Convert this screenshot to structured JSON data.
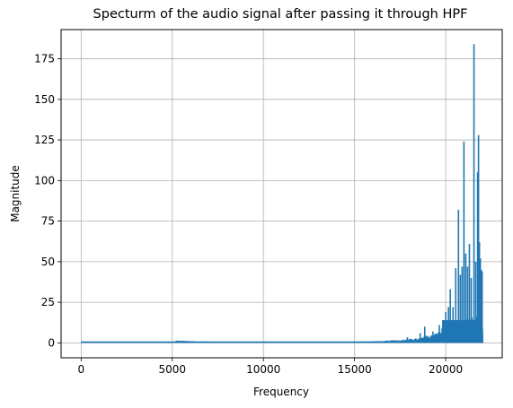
{
  "chart_data": {
    "type": "line",
    "title": "Specturm of the audio signal after passing it through HPF",
    "xlabel": "Frequency",
    "ylabel": "Magnitude",
    "xlim": [
      -1100,
      23100
    ],
    "ylim": [
      -9.2,
      193
    ],
    "grid": true,
    "xticks": [
      0,
      5000,
      10000,
      15000,
      20000
    ],
    "xtick_labels": [
      "0",
      "5000",
      "10000",
      "15000",
      "20000"
    ],
    "yticks": [
      0,
      25,
      50,
      75,
      100,
      125,
      150,
      175
    ],
    "ytick_labels": [
      "0",
      "25",
      "50",
      "75",
      "100",
      "125",
      "150",
      "175"
    ],
    "series": [
      {
        "color": "#1f77b4",
        "baseline": {
          "x_start": 0,
          "x_end": 22050,
          "level_low": 0.3,
          "level_high": 1.8
        },
        "noise_floor": [
          [
            0,
            0.5
          ],
          [
            5000,
            0.8
          ],
          [
            5200,
            1.5
          ],
          [
            8000,
            0.5
          ],
          [
            14000,
            0.6
          ],
          [
            16500,
            1.2
          ],
          [
            17500,
            2.0
          ],
          [
            18500,
            3.0
          ],
          [
            19000,
            4.5
          ],
          [
            19500,
            6.0
          ],
          [
            20000,
            9.0
          ],
          [
            20500,
            12.0
          ],
          [
            21000,
            14.0
          ],
          [
            21500,
            16.0
          ],
          [
            21800,
            18.0
          ],
          [
            22000,
            20.0
          ],
          [
            22050,
            0.5
          ]
        ],
        "peaks": [
          [
            17900,
            3.5
          ],
          [
            18600,
            6.0
          ],
          [
            18850,
            10.0
          ],
          [
            19300,
            7.0
          ],
          [
            19650,
            11.0
          ],
          [
            19800,
            9.0
          ],
          [
            20000,
            19.0
          ],
          [
            20150,
            22.0
          ],
          [
            20250,
            33.0
          ],
          [
            20400,
            22.0
          ],
          [
            20550,
            46.0
          ],
          [
            20700,
            82.0
          ],
          [
            20800,
            42.0
          ],
          [
            20900,
            47.0
          ],
          [
            21000,
            124.0
          ],
          [
            21100,
            55.0
          ],
          [
            21200,
            47.0
          ],
          [
            21300,
            61.0
          ],
          [
            21400,
            40.0
          ],
          [
            21550,
            184.0
          ],
          [
            21650,
            50.0
          ],
          [
            21750,
            105.0
          ],
          [
            21800,
            128.0
          ],
          [
            21850,
            62.0
          ],
          [
            21900,
            52.0
          ],
          [
            21950,
            45.0
          ],
          [
            22000,
            44.0
          ]
        ]
      }
    ]
  }
}
